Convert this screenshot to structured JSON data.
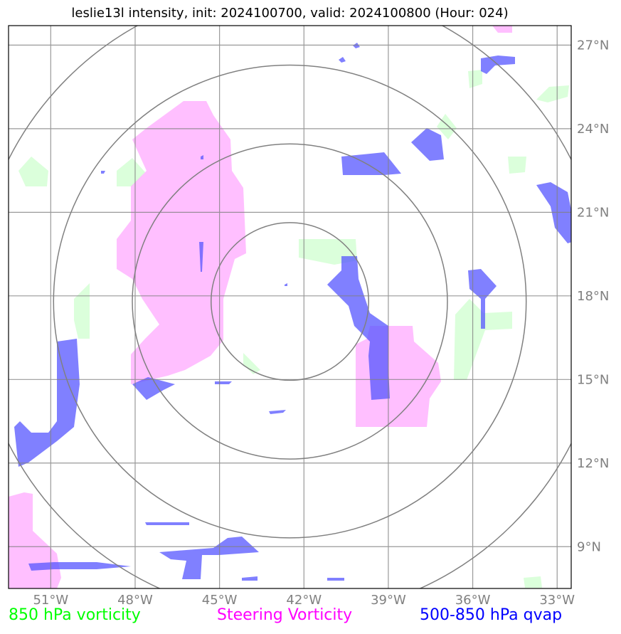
{
  "title": "leslie13l intensity, init: 2024100700, valid: 2024100800 (Hour: 024)",
  "map": {
    "lon_range": [
      -52.5,
      -32.5
    ],
    "lat_range": [
      7.5,
      27.7
    ],
    "center": {
      "lon": -42.5,
      "lat": 17.8
    },
    "range_rings_deg": [
      2.8,
      5.6,
      8.4,
      11.2
    ],
    "x_ticks": [
      {
        "lon": -51,
        "label": "51°W"
      },
      {
        "lon": -48,
        "label": "48°W"
      },
      {
        "lon": -45,
        "label": "45°W"
      },
      {
        "lon": -42,
        "label": "42°W"
      },
      {
        "lon": -39,
        "label": "39°W"
      },
      {
        "lon": -36,
        "label": "36°W"
      },
      {
        "lon": -33,
        "label": "33°W"
      }
    ],
    "y_ticks": [
      {
        "lat": 27,
        "label": "27°N"
      },
      {
        "lat": 24,
        "label": "24°N"
      },
      {
        "lat": 21,
        "label": "21°N"
      },
      {
        "lat": 18,
        "label": "18°N"
      },
      {
        "lat": 15,
        "label": "15°N"
      },
      {
        "lat": 12,
        "label": "12°N"
      },
      {
        "lat": 9,
        "label": "9°N"
      }
    ]
  },
  "legend": {
    "vort850": {
      "label": "850 hPa vorticity",
      "color": "#00ff00"
    },
    "steering": {
      "label": "Steering Vorticity",
      "color": "#ff00ff"
    },
    "qvap": {
      "label": "500-850 hPa qvap",
      "color": "#0000ff"
    }
  },
  "colors": {
    "vort850_fill": "#ccffcc",
    "steering_fill": "#ffaaff",
    "qvap_fill": "#6666ff",
    "grid": "#808080",
    "rings": "#808080"
  }
}
